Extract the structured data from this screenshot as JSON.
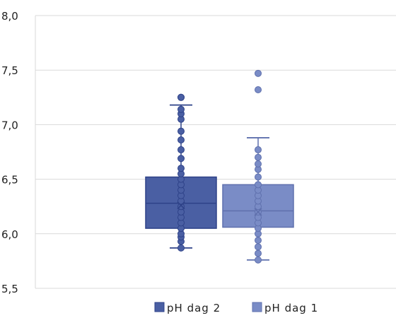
{
  "chart_data": {
    "type": "box",
    "title": "",
    "xlabel": "",
    "ylabel": "",
    "ylim": [
      5.5,
      8.0
    ],
    "y_ticks": [
      "8,0",
      "7,5",
      "7,0",
      "6,5",
      "6,0",
      "5,5"
    ],
    "grid": true,
    "legend_position": "bottom",
    "series": [
      {
        "name": "pH dag 2",
        "color": "#4a5fa3",
        "q1": 6.05,
        "median": 6.28,
        "q3": 6.52,
        "mean": 6.26,
        "whisker_low": 5.87,
        "whisker_high": 7.18,
        "points": [
          5.87,
          5.93,
          5.97,
          6.0,
          6.05,
          6.1,
          6.15,
          6.2,
          6.25,
          6.3,
          6.35,
          6.4,
          6.45,
          6.5,
          6.55,
          6.6,
          6.69,
          6.77,
          6.86,
          6.94,
          7.05,
          7.1,
          7.14,
          7.25
        ],
        "outliers": [
          7.25
        ]
      },
      {
        "name": "pH dag 1",
        "color": "#7a8cc6",
        "q1": 6.06,
        "median": 6.21,
        "q3": 6.45,
        "mean": 6.2,
        "whisker_low": 5.76,
        "whisker_high": 6.88,
        "points": [
          5.76,
          5.82,
          5.88,
          5.94,
          6.0,
          6.05,
          6.1,
          6.15,
          6.2,
          6.25,
          6.3,
          6.35,
          6.4,
          6.45,
          6.52,
          6.59,
          6.64,
          6.7,
          6.77
        ],
        "outliers": [
          7.32,
          7.47
        ]
      }
    ]
  }
}
